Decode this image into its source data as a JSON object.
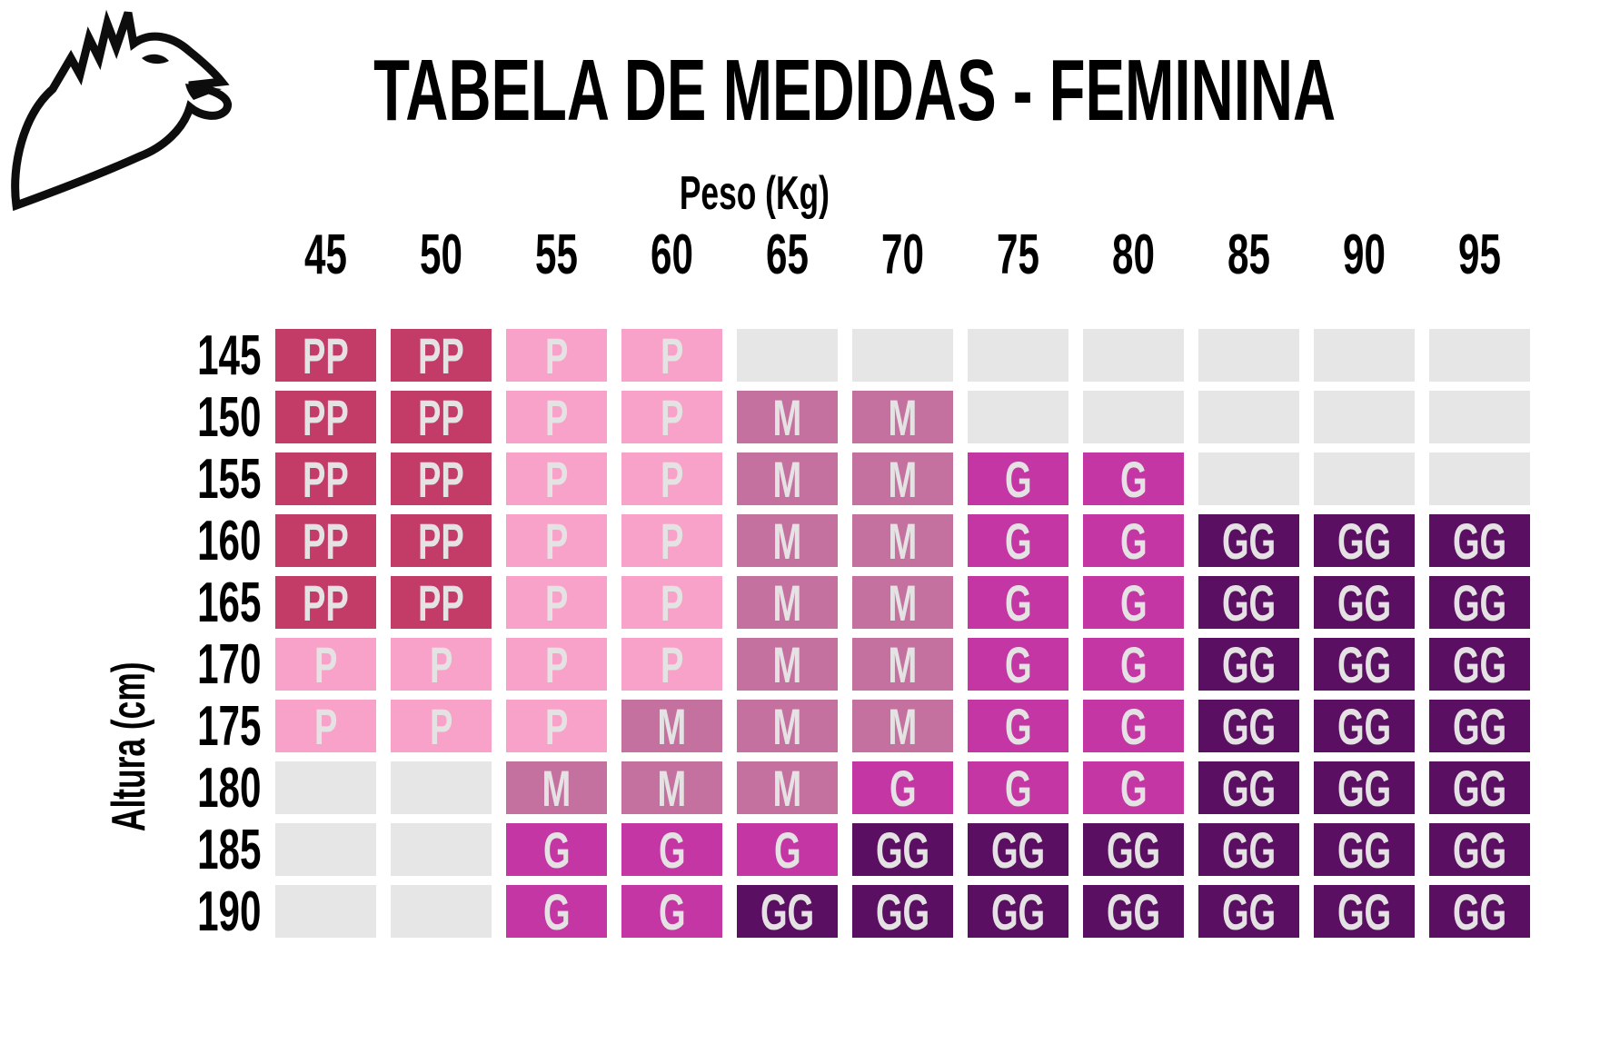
{
  "logo": {
    "name": "eagle-logo"
  },
  "title": "TABELA DE MEDIDAS - FEMININA",
  "axes": {
    "x_label": "Peso (Kg)",
    "y_label": "Altura (cm)"
  },
  "chart_data": {
    "type": "heatmap",
    "title": "TABELA DE MEDIDAS - FEMININA",
    "xlabel": "Peso (Kg)",
    "ylabel": "Altura (cm)",
    "columns": [
      "45",
      "50",
      "55",
      "60",
      "65",
      "70",
      "75",
      "80",
      "85",
      "90",
      "95"
    ],
    "rows": [
      "145",
      "150",
      "155",
      "160",
      "165",
      "170",
      "175",
      "180",
      "185",
      "190"
    ],
    "cells": [
      [
        "PP",
        "PP",
        "P",
        "P",
        "",
        "",
        "",
        "",
        "",
        "",
        ""
      ],
      [
        "PP",
        "PP",
        "P",
        "P",
        "M",
        "M",
        "",
        "",
        "",
        "",
        ""
      ],
      [
        "PP",
        "PP",
        "P",
        "P",
        "M",
        "M",
        "G",
        "G",
        "",
        "",
        ""
      ],
      [
        "PP",
        "PP",
        "P",
        "P",
        "M",
        "M",
        "G",
        "G",
        "GG",
        "GG",
        "GG"
      ],
      [
        "PP",
        "PP",
        "P",
        "P",
        "M",
        "M",
        "G",
        "G",
        "GG",
        "GG",
        "GG"
      ],
      [
        "P",
        "P",
        "P",
        "P",
        "M",
        "M",
        "G",
        "G",
        "GG",
        "GG",
        "GG"
      ],
      [
        "P",
        "P",
        "P",
        "M",
        "M",
        "M",
        "G",
        "G",
        "GG",
        "GG",
        "GG"
      ],
      [
        "",
        "",
        "M",
        "M",
        "M",
        "G",
        "G",
        "G",
        "GG",
        "GG",
        "GG"
      ],
      [
        "",
        "",
        "G",
        "G",
        "G",
        "GG",
        "GG",
        "GG",
        "GG",
        "GG",
        "GG"
      ],
      [
        "",
        "",
        "G",
        "G",
        "GG",
        "GG",
        "GG",
        "GG",
        "GG",
        "GG",
        "GG"
      ]
    ],
    "size_levels": [
      "PP",
      "P",
      "M",
      "G",
      "GG"
    ],
    "colors": {
      "PP": "#C33B67",
      "P": "#F9A2C9",
      "M": "#C4719F",
      "G": "#C436A3",
      "GG": "#5B0F63",
      "empty": "#E7E6E6",
      "cell_text": "#E5E2E4",
      "label_text": "#000000"
    },
    "legend_position": "none",
    "grid": "gapped-cells"
  }
}
